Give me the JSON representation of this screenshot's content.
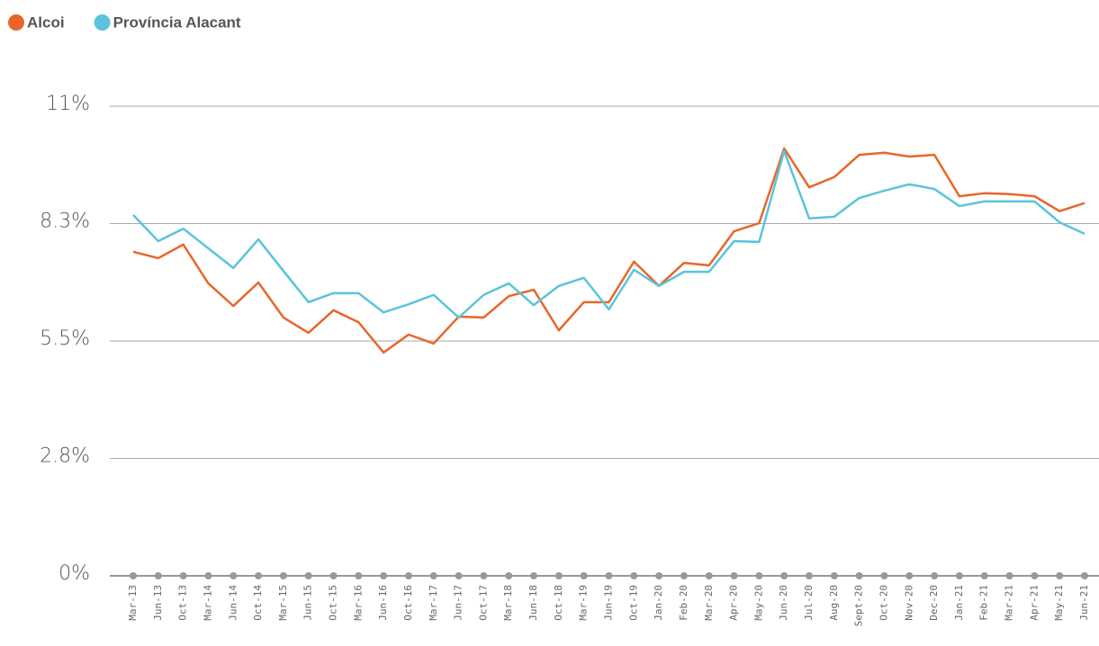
{
  "chart_data": {
    "type": "line",
    "categories": [
      "Mar-13",
      "Jun-13",
      "Oct-13",
      "Mar-14",
      "Jun-14",
      "Oct-14",
      "Mar-15",
      "Jun-15",
      "Oct-15",
      "Mar-16",
      "Jun-16",
      "Oct-16",
      "Mar-17",
      "Jun-17",
      "Oct-17",
      "Mar-18",
      "Jun-18",
      "Oct-18",
      "Mar-19",
      "Jun-19",
      "Oct-19",
      "Jan-20",
      "Feb-20",
      "Mar-20",
      "Apr-20",
      "May-20",
      "Jun-20",
      "Jul-20",
      "Aug-20",
      "Sept-20",
      "Oct-20",
      "Nov-20",
      "Dec-20",
      "Jan-21",
      "Feb-21",
      "Mar-21",
      "Apr-21",
      "May-21",
      "Jun-21"
    ],
    "series": [
      {
        "name": "Alcoi",
        "color": "#e8662a",
        "values": [
          7.59,
          7.44,
          7.76,
          6.85,
          6.32,
          6.87,
          6.05,
          5.69,
          6.22,
          5.94,
          5.23,
          5.65,
          5.44,
          6.07,
          6.05,
          6.55,
          6.7,
          5.75,
          6.41,
          6.41,
          7.36,
          6.79,
          7.33,
          7.27,
          8.07,
          8.26,
          10.01,
          9.1,
          9.34,
          9.86,
          9.91,
          9.82,
          9.86,
          8.89,
          8.96,
          8.94,
          8.89,
          8.54,
          8.73
        ]
      },
      {
        "name": "Província Alacant",
        "color": "#5bc3dc",
        "values": [
          8.45,
          7.84,
          8.13,
          7.67,
          7.21,
          7.88,
          7.14,
          6.41,
          6.62,
          6.62,
          6.17,
          6.36,
          6.58,
          6.05,
          6.58,
          6.85,
          6.34,
          6.79,
          6.98,
          6.24,
          7.17,
          6.79,
          7.12,
          7.12,
          7.84,
          7.82,
          9.95,
          8.37,
          8.41,
          8.85,
          9.02,
          9.17,
          9.06,
          8.66,
          8.77,
          8.77,
          8.77,
          8.28,
          8.01
        ]
      }
    ],
    "ylim": [
      0,
      11
    ],
    "yticks": [
      {
        "value": 0,
        "label": "0%"
      },
      {
        "value": 2.75,
        "label": "2.8%"
      },
      {
        "value": 5.5,
        "label": "5.5%"
      },
      {
        "value": 8.25,
        "label": "8.3%"
      },
      {
        "value": 11,
        "label": "11%"
      }
    ],
    "grid": true,
    "legend": "top-left"
  }
}
